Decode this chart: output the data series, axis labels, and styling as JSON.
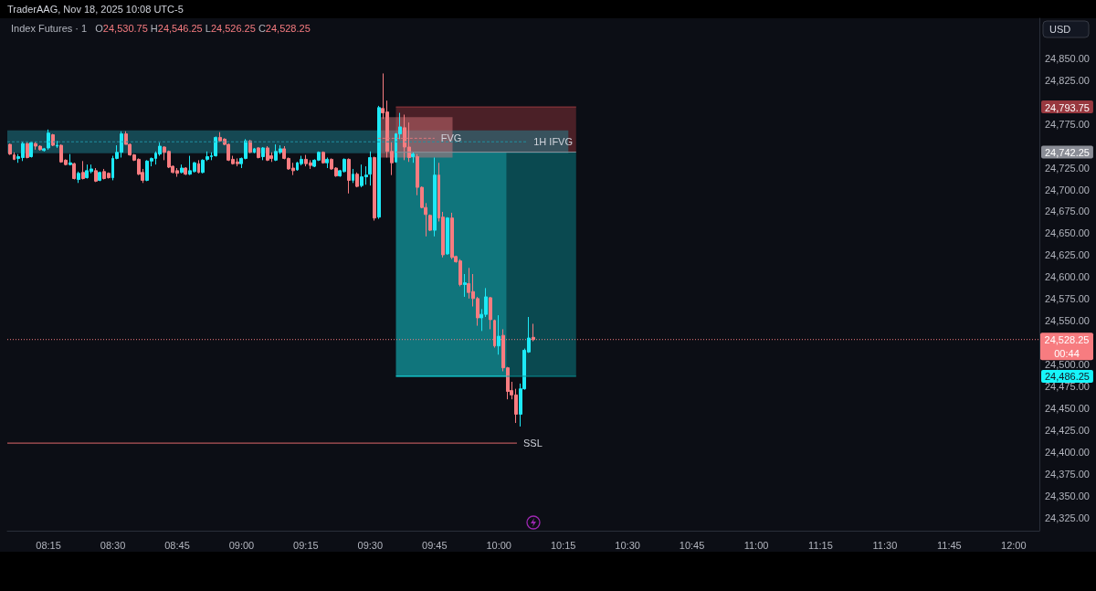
{
  "chart_data": {
    "type": "candlestick",
    "title": "Index Futures · 1",
    "subtitle": "O24,530.75 H24,546.25 L24,526.25 C24,528.25",
    "ylabel": "USD",
    "annotations": [
      "TraderAAG, Nov 18, 2025 10:08 UTC-5"
    ],
    "xlim": [
      8.09,
      12.1
    ],
    "ylim": [
      24310,
      24895
    ],
    "xticks": [
      {
        "value": 8.25,
        "label": "08:15"
      },
      {
        "value": 8.5,
        "label": "08:30"
      },
      {
        "value": 8.75,
        "label": "08:45"
      },
      {
        "value": 9,
        "label": "09:00"
      },
      {
        "value": 9.25,
        "label": "09:15"
      },
      {
        "value": 9.5,
        "label": "09:30"
      },
      {
        "value": 9.75,
        "label": "09:45"
      },
      {
        "value": 10,
        "label": "10:00"
      },
      {
        "value": 10.25,
        "label": "10:15"
      },
      {
        "value": 10.5,
        "label": "10:30"
      },
      {
        "value": 10.75,
        "label": "10:45"
      },
      {
        "value": 11,
        "label": "11:00"
      },
      {
        "value": 11.25,
        "label": "11:15"
      },
      {
        "value": 11.5,
        "label": "11:30"
      },
      {
        "value": 11.75,
        "label": "11:45"
      },
      {
        "value": 12,
        "label": "12:00"
      }
    ],
    "yticks": [
      {
        "value": 24325,
        "label": "24,325.00"
      },
      {
        "value": 24350,
        "label": "24,350.00"
      },
      {
        "value": 24375,
        "label": "24,375.00"
      },
      {
        "value": 24400,
        "label": "24,400.00"
      },
      {
        "value": 24425,
        "label": "24,425.00"
      },
      {
        "value": 24450,
        "label": "24,450.00"
      },
      {
        "value": 24475,
        "label": "24,475.00"
      },
      {
        "value": 24486.25,
        "label": "24,486.25"
      },
      {
        "value": 24500,
        "label": "24,500.00"
      },
      {
        "value": 24550,
        "label": "24,550.00"
      },
      {
        "value": 24575,
        "label": "24,575.00"
      },
      {
        "value": 24600,
        "label": "24,600.00"
      },
      {
        "value": 24625,
        "label": "24,625.00"
      },
      {
        "value": 24650,
        "label": "24,650.00"
      },
      {
        "value": 24675,
        "label": "24,675.00"
      },
      {
        "value": 24700,
        "label": "24,700.00"
      },
      {
        "value": 24725,
        "label": "24,725.00"
      },
      {
        "value": 24742.25,
        "label": "24,742.25"
      },
      {
        "value": 24775,
        "label": "24,775.00"
      },
      {
        "value": 24793.75,
        "label": "24,793.75"
      },
      {
        "value": 24825,
        "label": "24,825.00"
      },
      {
        "value": 24850,
        "label": "24,850.00"
      }
    ],
    "ref_lines": [
      {
        "axis": "y",
        "value": 24528.25,
        "label": "24,528.25\n00:44",
        "line_style": "dotted",
        "color": "#f77c80"
      }
    ],
    "series": [
      {
        "x": [
          8.1,
          8.1167,
          8.1333,
          8.15,
          8.1667,
          8.1833,
          8.2,
          8.2167,
          8.2333,
          8.25,
          8.2667,
          8.2833,
          8.3,
          8.3167,
          8.3333,
          8.35,
          8.3667,
          8.3833,
          8.4,
          8.4167,
          8.4333,
          8.45,
          8.4667,
          8.4833,
          8.5,
          8.5167,
          8.5333,
          8.55,
          8.5667,
          8.5833,
          8.6,
          8.6167,
          8.6333,
          8.65,
          8.6667,
          8.6833,
          8.7,
          8.7167,
          8.7333,
          8.75,
          8.7667,
          8.7833,
          8.8,
          8.8167,
          8.8333,
          8.85,
          8.8667,
          8.8833,
          8.9,
          8.9167,
          8.9333,
          8.95,
          8.9667,
          8.9833,
          9,
          9.0167,
          9.0333,
          9.05,
          9.0667,
          9.0833,
          9.1,
          9.1167,
          9.1333,
          9.15,
          9.1667,
          9.1833,
          9.2,
          9.2167,
          9.2333,
          9.25,
          9.2667,
          9.2833,
          9.3,
          9.3167,
          9.3333,
          9.35,
          9.3667,
          9.3833,
          9.4,
          9.4167,
          9.4333,
          9.45,
          9.4667,
          9.4833,
          9.5,
          9.5167,
          9.5333,
          9.55,
          9.5667,
          9.5833,
          9.6,
          9.6167,
          9.6333,
          9.65,
          9.6667,
          9.6833,
          9.7,
          9.7167,
          9.7333,
          9.75,
          9.7667,
          9.7833,
          9.8,
          9.8167,
          9.8333,
          9.85,
          9.8667,
          9.8833,
          9.9,
          9.9167,
          9.9333,
          9.95,
          9.9667,
          9.9833,
          10,
          10.0167,
          10.0333,
          10.05,
          10.0667,
          10.0833,
          10.1,
          10.1167,
          10.1333
        ],
        "ohlc": [
          [
            24751,
            24752,
            24739,
            24740
          ],
          [
            24739,
            24742,
            24733,
            24734
          ],
          [
            24735,
            24740,
            24730,
            24737
          ],
          [
            24736,
            24754,
            24732,
            24752
          ],
          [
            24752,
            24753,
            24735,
            24736
          ],
          [
            24737,
            24754,
            24736,
            24753
          ],
          [
            24752,
            24754,
            24745,
            24749
          ],
          [
            24749,
            24750,
            24744,
            24745
          ],
          [
            24744,
            24747,
            24743,
            24746
          ],
          [
            24747,
            24768,
            24745,
            24764
          ],
          [
            24762,
            24763,
            24749,
            24750
          ],
          [
            24749,
            24755,
            24747,
            24750
          ],
          [
            24750,
            24751,
            24730,
            24731
          ],
          [
            24733,
            24734,
            24727,
            24728
          ],
          [
            24728,
            24740,
            24727,
            24730
          ],
          [
            24729,
            24730,
            24711,
            24712
          ],
          [
            24711,
            24720,
            24707,
            24718
          ],
          [
            24719,
            24732,
            24711,
            24712
          ],
          [
            24713,
            24728,
            24712,
            24721
          ],
          [
            24720,
            24728,
            24718,
            24723
          ],
          [
            24721,
            24724,
            24708,
            24709
          ],
          [
            24710,
            24720,
            24709,
            24719
          ],
          [
            24720,
            24723,
            24711,
            24712
          ],
          [
            24718,
            24719,
            24712,
            24713
          ],
          [
            24713,
            24738,
            24710,
            24735
          ],
          [
            24735,
            24750,
            24734,
            24742
          ],
          [
            24742,
            24766,
            24736,
            24763
          ],
          [
            24763,
            24766,
            24751,
            24751
          ],
          [
            24751,
            24752,
            24738,
            24739
          ],
          [
            24739,
            24740,
            24732,
            24733
          ],
          [
            24734,
            24735,
            24716,
            24717
          ],
          [
            24719,
            24723,
            24707,
            24710
          ],
          [
            24710,
            24733,
            24709,
            24732
          ],
          [
            24732,
            24736,
            24726,
            24735
          ],
          [
            24735,
            24743,
            24728,
            24741
          ],
          [
            24740,
            24753,
            24738,
            24749
          ],
          [
            24748,
            24749,
            24733,
            24742
          ],
          [
            24743,
            24744,
            24724,
            24725
          ],
          [
            24726,
            24727,
            24718,
            24719
          ],
          [
            24721,
            24724,
            24714,
            24718
          ],
          [
            24719,
            24728,
            24718,
            24724
          ],
          [
            24724,
            24725,
            24716,
            24717
          ],
          [
            24717,
            24738,
            24716,
            24721
          ],
          [
            24720,
            24731,
            24719,
            24730
          ],
          [
            24729,
            24733,
            24718,
            24719
          ],
          [
            24719,
            24734,
            24718,
            24733
          ],
          [
            24734,
            24743,
            24732,
            24737
          ],
          [
            24737,
            24742,
            24733,
            24738
          ],
          [
            24738,
            24760,
            24737,
            24759
          ],
          [
            24759,
            24765,
            24754,
            24755
          ],
          [
            24757,
            24758,
            24750,
            24751
          ],
          [
            24751,
            24752,
            24732,
            24733
          ],
          [
            24734,
            24738,
            24728,
            24729
          ],
          [
            24731,
            24735,
            24726,
            24729
          ],
          [
            24729,
            24736,
            24724,
            24735
          ],
          [
            24735,
            24757,
            24734,
            24755
          ],
          [
            24755,
            24756,
            24741,
            24742
          ],
          [
            24742,
            24747,
            24741,
            24746
          ],
          [
            24747,
            24748,
            24735,
            24736
          ],
          [
            24737,
            24748,
            24733,
            24747
          ],
          [
            24747,
            24749,
            24732,
            24733
          ],
          [
            24738,
            24742,
            24731,
            24735
          ],
          [
            24733,
            24751,
            24732,
            24743
          ],
          [
            24742,
            24750,
            24740,
            24746
          ],
          [
            24746,
            24749,
            24734,
            24735
          ],
          [
            24735,
            24736,
            24722,
            24723
          ],
          [
            24724,
            24730,
            24716,
            24721
          ],
          [
            24722,
            24731,
            24721,
            24730
          ],
          [
            24729,
            24738,
            24727,
            24734
          ],
          [
            24734,
            24739,
            24726,
            24729
          ],
          [
            24730,
            24733,
            24723,
            24727
          ],
          [
            24726,
            24734,
            24725,
            24733
          ],
          [
            24733,
            24743,
            24732,
            24742
          ],
          [
            24742,
            24743,
            24729,
            24730
          ],
          [
            24730,
            24736,
            24724,
            24734
          ],
          [
            24734,
            24735,
            24722,
            24723
          ],
          [
            24724,
            24725,
            24714,
            24715
          ],
          [
            24715,
            24722,
            24714,
            24721
          ],
          [
            24720,
            24735,
            24719,
            24734
          ],
          [
            24734,
            24735,
            24695,
            24710
          ],
          [
            24710,
            24723,
            24707,
            24717
          ],
          [
            24717,
            24719,
            24702,
            24703
          ],
          [
            24704,
            24728,
            24702,
            24714
          ],
          [
            24714,
            24726,
            24705,
            24716
          ],
          [
            24717,
            24743,
            24704,
            24736
          ],
          [
            24736,
            24737,
            24664,
            24667
          ],
          [
            24668,
            24795,
            24666,
            24793
          ],
          [
            24792,
            24832,
            24780,
            24787
          ],
          [
            24788,
            24801,
            24736,
            24743
          ],
          [
            24743,
            24754,
            24716,
            24730
          ],
          [
            24731,
            24764,
            24730,
            24763
          ],
          [
            24763,
            24787,
            24757,
            24771
          ],
          [
            24770,
            24785,
            24733,
            24748
          ],
          [
            24748,
            24776,
            24731,
            24736
          ],
          [
            24737,
            24742,
            24730,
            24740
          ],
          [
            24737,
            24740,
            24693,
            24702
          ],
          [
            24702,
            24703,
            24678,
            24679
          ],
          [
            24679,
            24684,
            24646,
            24671
          ],
          [
            24670,
            24671,
            24652,
            24653
          ],
          [
            24653,
            24736,
            24646,
            24716
          ],
          [
            24716,
            24730,
            24663,
            24667
          ],
          [
            24668,
            24674,
            24622,
            24625
          ],
          [
            24626,
            24668,
            24625,
            24667
          ],
          [
            24667,
            24673,
            24620,
            24622
          ],
          [
            24623,
            24624,
            24616,
            24617
          ],
          [
            24618,
            24620,
            24589,
            24591
          ],
          [
            24591,
            24603,
            24577,
            24593
          ],
          [
            24592,
            24610,
            24575,
            24582
          ],
          [
            24583,
            24603,
            24566,
            24575
          ],
          [
            24575,
            24577,
            24544,
            24553
          ],
          [
            24553,
            24563,
            24538,
            24557
          ],
          [
            24557,
            24587,
            24554,
            24577
          ],
          [
            24576,
            24577,
            24540,
            24551
          ],
          [
            24550,
            24551,
            24519,
            24521
          ],
          [
            24521,
            24556,
            24511,
            24532
          ],
          [
            24533,
            24540,
            24492,
            24496
          ],
          [
            24496,
            24497,
            24460,
            24469
          ],
          [
            24470,
            24480,
            24460,
            24465
          ],
          [
            24465,
            24472,
            24433,
            24443
          ],
          [
            24443,
            24478,
            24429,
            24472
          ],
          [
            24472,
            24518,
            24471,
            24516
          ],
          [
            24514,
            24554,
            24513,
            24530
          ],
          [
            24530.75,
            24546.25,
            24526.25,
            24528.25
          ]
        ],
        "colors": [
          "#f77c80",
          "#f77c80",
          "#1de9f6",
          "#1de9f6",
          "#f77c80",
          "#1de9f6",
          "#f77c80",
          "#f77c80",
          "#1de9f6",
          "#1de9f6",
          "#f77c80",
          "#1de9f6",
          "#f77c80",
          "#f77c80",
          "#1de9f6",
          "#f77c80",
          "#1de9f6",
          "#f77c80",
          "#1de9f6",
          "#1de9f6",
          "#f77c80",
          "#1de9f6",
          "#f77c80",
          "#f77c80",
          "#1de9f6",
          "#1de9f6",
          "#1de9f6",
          "#f77c80",
          "#f77c80",
          "#f77c80",
          "#f77c80",
          "#f77c80",
          "#1de9f6",
          "#1de9f6",
          "#1de9f6",
          "#1de9f6",
          "#f77c80",
          "#f77c80",
          "#f77c80",
          "#f77c80",
          "#1de9f6",
          "#f77c80",
          "#1de9f6",
          "#1de9f6",
          "#f77c80",
          "#1de9f6",
          "#1de9f6",
          "#1de9f6",
          "#1de9f6",
          "#f77c80",
          "#f77c80",
          "#f77c80",
          "#f77c80",
          "#f77c80",
          "#1de9f6",
          "#1de9f6",
          "#f77c80",
          "#1de9f6",
          "#f77c80",
          "#1de9f6",
          "#f77c80",
          "#f77c80",
          "#1de9f6",
          "#1de9f6",
          "#f77c80",
          "#f77c80",
          "#f77c80",
          "#1de9f6",
          "#1de9f6",
          "#f77c80",
          "#f77c80",
          "#1de9f6",
          "#1de9f6",
          "#f77c80",
          "#1de9f6",
          "#f77c80",
          "#f77c80",
          "#1de9f6",
          "#1de9f6",
          "#f77c80",
          "#1de9f6",
          "#f77c80",
          "#1de9f6",
          "#1de9f6",
          "#1de9f6",
          "#f77c80",
          "#1de9f6",
          "#f77c80",
          "#f77c80",
          "#f77c80",
          "#1de9f6",
          "#1de9f6",
          "#f77c80",
          "#f77c80",
          "#1de9f6",
          "#f77c80",
          "#f77c80",
          "#f77c80",
          "#f77c80",
          "#1de9f6",
          "#f77c80",
          "#f77c80",
          "#1de9f6",
          "#f77c80",
          "#f77c80",
          "#f77c80",
          "#1de9f6",
          "#f77c80",
          "#f77c80",
          "#f77c80",
          "#1de9f6",
          "#1de9f6",
          "#f77c80",
          "#f77c80",
          "#1de9f6",
          "#f77c80",
          "#f77c80",
          "#f77c80",
          "#f77c80",
          "#1de9f6",
          "#1de9f6",
          "#1de9f6",
          "#f77c80"
        ]
      },
      {
        "type": "line",
        "color": "#98383f",
        "x": [
          9.6,
          10.3
        ],
        "values": [
          24793.75,
          24793.75
        ],
        "lower": [
          24742.25,
          24742.25
        ],
        "upper": [
          24793.75,
          24793.75
        ]
      },
      {
        "type": "line",
        "color": "#17f5fa",
        "x": [
          9.6,
          10.03
        ],
        "values": [
          24486.25,
          24486.25
        ],
        "lower": [
          24486.25,
          24486.25
        ],
        "upper": [
          24742.25,
          24742.25
        ]
      },
      {
        "type": "line",
        "color": "#089398",
        "x": [
          10.03,
          10.3
        ],
        "values": [
          24486.25,
          24486.25
        ],
        "lower": [
          24486.25,
          24486.25
        ],
        "upper": [
          24742.25,
          24742.25
        ]
      },
      {
        "type": "line",
        "name": "1H IFVG",
        "color": "#2190a0",
        "line_style": "dashed",
        "x": [
          8.09,
          10.11,
          10.27
        ],
        "values": [
          24754,
          24754,
          null
        ],
        "lower": [
          24741,
          24741,
          24741
        ],
        "upper": [
          24767,
          24767,
          24767
        ]
      },
      {
        "type": "line",
        "name": "FVG",
        "color": "#d9777d",
        "line_style": "dashed",
        "x": [
          9.53,
          9.75,
          9.82
        ],
        "values": [
          24758,
          24758,
          null
        ],
        "lower": [
          24736,
          24736,
          24736
        ],
        "upper": [
          24782,
          24782,
          24782
        ]
      },
      {
        "type": "line",
        "color": "#8a8d96",
        "x": [
          9.6,
          10.3
        ],
        "values": [
          24742.25,
          24742.25
        ]
      },
      {
        "type": "line",
        "name": "SSL",
        "color": "#e0686c",
        "x": [
          8.09,
          10.07
        ],
        "values": [
          24410,
          24410
        ]
      }
    ]
  }
}
